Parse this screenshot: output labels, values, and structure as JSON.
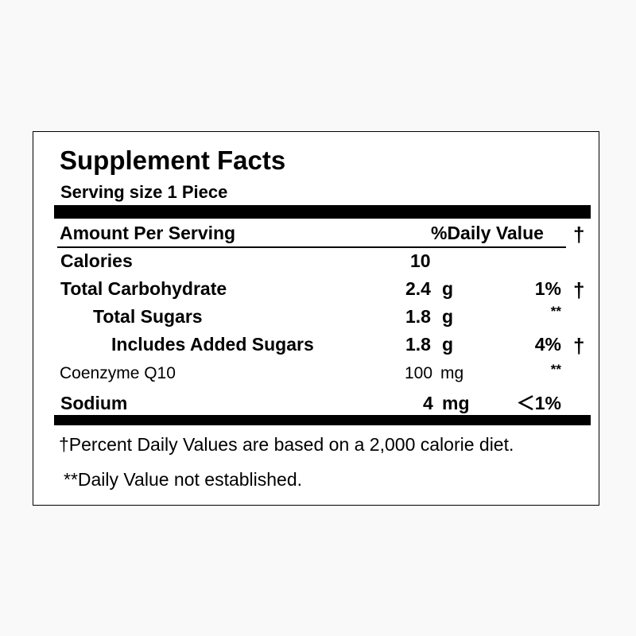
{
  "label": {
    "title": "Supplement Facts",
    "serving_size": "Serving size 1 Piece",
    "header": {
      "amount_per_serving": "Amount Per Serving",
      "daily_value": "%Daily Value",
      "dagger": "†"
    },
    "rows": [
      {
        "name": "Calories",
        "amount": "10",
        "unit": "",
        "dv": "",
        "mark": ""
      },
      {
        "name": "Total Carbohydrate",
        "amount": "2.4",
        "unit": "g",
        "dv": "1%",
        "mark": "†"
      },
      {
        "name": "Total Sugars",
        "amount": "1.8",
        "unit": "g",
        "dv": "**",
        "mark": ""
      },
      {
        "name": "Includes Added Sugars",
        "amount": "1.8",
        "unit": "g",
        "dv": "4%",
        "mark": "†"
      },
      {
        "name": "Coenzyme Q10",
        "amount": "100",
        "unit": "mg",
        "dv": "**",
        "mark": ""
      },
      {
        "name": "Sodium",
        "amount": "4",
        "unit": "mg",
        "dv": "＜1%",
        "mark": ""
      }
    ],
    "footnotes": [
      "†Percent Daily Values are based on a 2,000 calorie diet.",
      "**Daily Value not established."
    ]
  }
}
